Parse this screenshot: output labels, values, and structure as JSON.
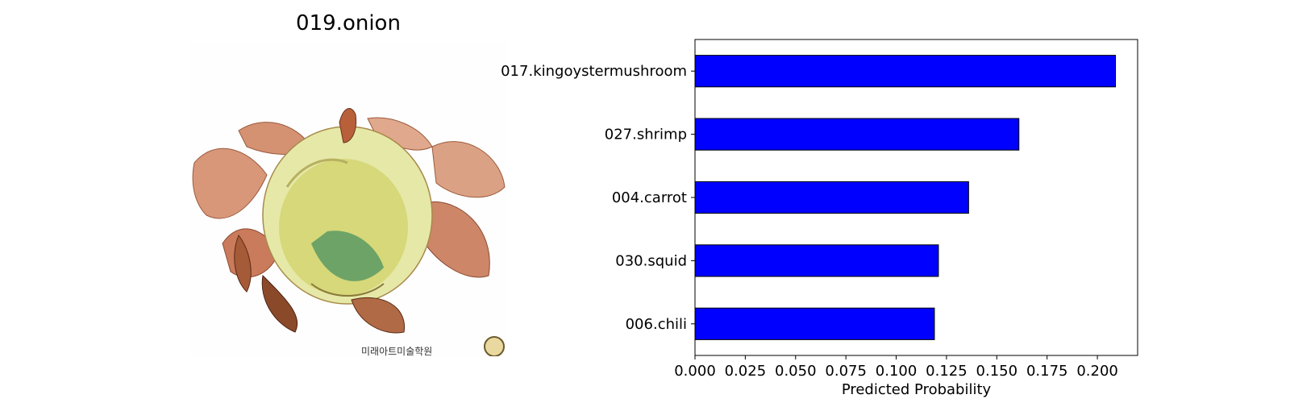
{
  "image_panel": {
    "title": "019.onion",
    "watermark": "미래아트미술학원"
  },
  "chart_data": {
    "type": "bar",
    "orientation": "horizontal",
    "categories": [
      "017.kingoystermushroom",
      "027.shrimp",
      "004.carrot",
      "030.squid",
      "006.chili"
    ],
    "values": [
      0.209,
      0.161,
      0.136,
      0.121,
      0.119
    ],
    "xlabel": "Predicted Probability",
    "ylabel": "",
    "xlim": [
      0,
      0.22
    ],
    "xticks": [
      "0.000",
      "0.025",
      "0.050",
      "0.075",
      "0.100",
      "0.125",
      "0.150",
      "0.175",
      "0.200"
    ],
    "bar_color": "#0000ff",
    "grid": false
  }
}
